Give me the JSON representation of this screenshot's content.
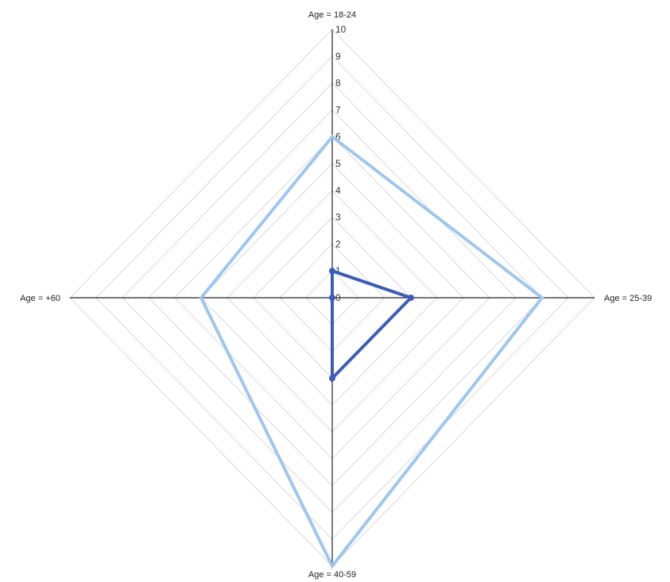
{
  "chart_data": {
    "type": "radar",
    "title": "",
    "axes": [
      "Age = 18-24",
      "Age = 25-39",
      "Age = 40-59",
      "Age = +60"
    ],
    "ticks": [
      "0",
      "1",
      "2",
      "3",
      "4",
      "5",
      "6",
      "7",
      "8",
      "9",
      "10"
    ],
    "range": [
      0,
      10
    ],
    "grid": true,
    "series": [
      {
        "color": "#9fc6ee",
        "values": [
          6,
          8,
          10,
          5
        ],
        "show_points": false
      },
      {
        "color": "#3b5db8",
        "values": [
          1,
          3,
          3,
          0
        ],
        "show_points": true
      }
    ]
  }
}
